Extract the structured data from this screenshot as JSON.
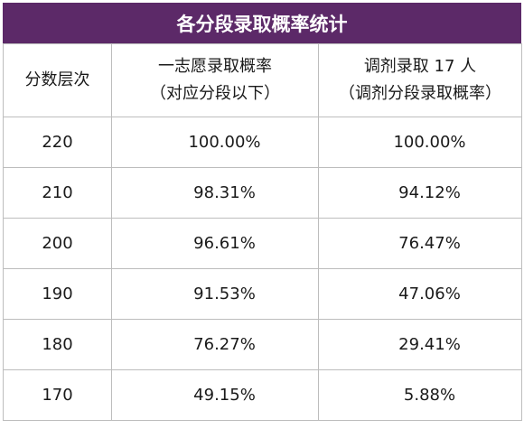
{
  "title": "各分段录取概率统计",
  "headers": {
    "col1": "分数层次",
    "col2_line1": "一志愿录取概率",
    "col2_line2": "（对应分段以下）",
    "col3_line1": "调剂录取 17 人",
    "col3_line2": "（调剂分段录取概率）"
  },
  "rows": [
    {
      "score": "220",
      "first": "100.00%",
      "adjust": "100.00%"
    },
    {
      "score": "210",
      "first": "98.31%",
      "adjust": "94.12%"
    },
    {
      "score": "200",
      "first": "96.61%",
      "adjust": "76.47%"
    },
    {
      "score": "190",
      "first": "91.53%",
      "adjust": "47.06%"
    },
    {
      "score": "180",
      "first": "76.27%",
      "adjust": "29.41%"
    },
    {
      "score": "170",
      "first": "49.15%",
      "adjust": "5.88%"
    }
  ],
  "colors": {
    "title_bg": "#5c2968",
    "title_text": "#ffffff",
    "border": "#bdbdbd"
  }
}
